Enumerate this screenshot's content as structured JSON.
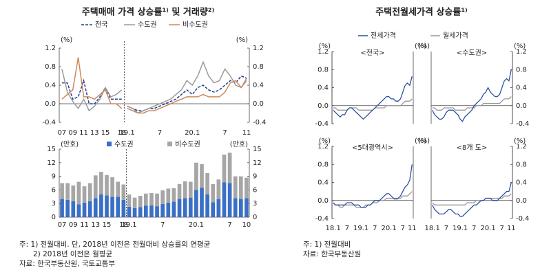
{
  "left_panel": {
    "title": "주택매매 가격 상승률¹⁾ 및 거래량²⁾",
    "notes": [
      "주: 1) 전월대비. 단, 2018년 이전은 전월대비 상승률의 연평균",
      "2) 2018년 이전은 월평균",
      "자료: 한국부동산원, 국토교통부"
    ]
  },
  "right_panel": {
    "title": "주택전월세가격 상승률¹⁾",
    "notes": [
      "주: 1) 전월대비",
      "자료: 한국부동산원"
    ]
  },
  "chart_data": [
    {
      "type": "line",
      "categories": [
        "07",
        null,
        "09",
        null,
        "11",
        null,
        "13",
        null,
        "15",
        null,
        null,
        "18",
        "19.1",
        null,
        null,
        null,
        null,
        null,
        "7",
        null,
        null,
        null,
        null,
        null,
        "20.1",
        null,
        null,
        null,
        null,
        null,
        "7",
        null,
        null,
        null,
        "11"
      ],
      "series": [
        {
          "name": "전국",
          "color": "#1f3f8f",
          "style": "dashed",
          "values": [
            0.45,
            0.45,
            0.1,
            0.15,
            0.5,
            0.0,
            0.0,
            0.15,
            0.35,
            0.1,
            0.1,
            0.1,
            -0.05,
            -0.1,
            -0.15,
            -0.15,
            -0.1,
            -0.1,
            -0.05,
            0.0,
            0.05,
            0.1,
            0.2,
            0.3,
            0.2,
            0.35,
            0.4,
            0.3,
            0.25,
            0.3,
            0.4,
            0.5,
            0.45,
            0.6,
            0.55
          ]
        },
        {
          "name": "수도권",
          "color": "#9a9a9a",
          "style": "solid",
          "values": [
            0.75,
            0.25,
            0.05,
            -0.1,
            0.1,
            -0.15,
            -0.05,
            0.1,
            0.35,
            0.15,
            0.2,
            0.3,
            -0.1,
            -0.15,
            -0.2,
            -0.15,
            -0.1,
            -0.05,
            0.0,
            0.05,
            0.1,
            0.2,
            0.3,
            0.5,
            0.4,
            0.6,
            0.9,
            0.6,
            0.45,
            0.5,
            0.75,
            0.6,
            0.4,
            0.35,
            0.55
          ]
        },
        {
          "name": "비수도권",
          "color": "#d0875a",
          "style": "solid",
          "values": [
            0.1,
            0.2,
            0.3,
            1.0,
            0.15,
            0.15,
            0.1,
            0.2,
            0.3,
            0.0,
            0.0,
            -0.1,
            -0.05,
            -0.1,
            -0.2,
            -0.2,
            -0.15,
            -0.15,
            -0.1,
            -0.05,
            0.0,
            0.05,
            0.1,
            0.15,
            0.15,
            0.15,
            0.2,
            0.15,
            0.15,
            0.15,
            0.25,
            0.45,
            0.5,
            0.35,
            0.5
          ]
        }
      ],
      "y_unit": "(%)",
      "ylim": [
        -0.4,
        1.2
      ],
      "yticks": [
        -0.4,
        {
          "value": 0,
          "label": "0.0"
        },
        0.4,
        0.8,
        1.2
      ],
      "y2_unit": "(%)",
      "y2lim": [
        -0.4,
        1.2
      ],
      "y2ticks": [
        -0.4,
        {
          "value": 0,
          "label": "0.0"
        },
        0.4,
        0.8,
        1.2
      ]
    },
    {
      "type": "stacked_bar",
      "categories": [
        "07",
        null,
        "09",
        null,
        "11",
        null,
        "13",
        null,
        "15",
        null,
        null,
        "18",
        "19.1",
        null,
        null,
        null,
        null,
        null,
        "7",
        null,
        null,
        null,
        null,
        null,
        "20.1",
        null,
        null,
        null,
        null,
        null,
        "7",
        null,
        null,
        "10"
      ],
      "series": [
        {
          "name": "수도권",
          "color": "#3a6fc4",
          "values": [
            4.0,
            3.8,
            3.5,
            2.8,
            3.2,
            3.5,
            4.2,
            5.0,
            4.8,
            4.5,
            4.5,
            3.8,
            2.3,
            2.0,
            2.2,
            2.5,
            2.6,
            2.4,
            2.9,
            3.2,
            3.4,
            4.0,
            4.2,
            4.3,
            6.0,
            6.5,
            5.0,
            3.3,
            4.0,
            7.7,
            7.5,
            4.2,
            4.0,
            4.2
          ]
        },
        {
          "name": "비수도권",
          "color": "#a6a6a6",
          "values": [
            3.5,
            3.7,
            3.5,
            5.0,
            3.6,
            4.0,
            5.0,
            5.0,
            4.5,
            4.3,
            3.3,
            3.4,
            2.7,
            2.3,
            2.5,
            2.7,
            2.7,
            2.8,
            3.0,
            3.1,
            3.0,
            3.3,
            3.7,
            3.5,
            6.0,
            5.2,
            4.7,
            4.0,
            4.3,
            6.1,
            6.7,
            4.8,
            5.0,
            4.5
          ]
        }
      ],
      "y_unit": "(만호)",
      "ylim": [
        0,
        15
      ],
      "yticks": [
        0,
        3,
        6,
        9,
        12,
        15
      ],
      "y2_unit": "(만호)",
      "y2lim": [
        0,
        15
      ],
      "y2ticks": [
        0,
        3,
        6,
        9,
        12,
        15
      ]
    },
    {
      "type": "small_multiples",
      "categories": [
        "18.1",
        null,
        null,
        null,
        null,
        null,
        "7",
        null,
        null,
        null,
        null,
        null,
        "19.1",
        null,
        null,
        null,
        null,
        null,
        "7",
        null,
        null,
        null,
        null,
        null,
        "20.1",
        null,
        null,
        null,
        null,
        null,
        "7",
        null,
        null,
        null,
        "11"
      ],
      "series": [
        {
          "name": "전세가격",
          "color": "#2d4fa0"
        },
        {
          "name": "월세가격",
          "color": "#999999"
        }
      ],
      "y_unit": "(%)",
      "ylim": [
        -0.4,
        1.2
      ],
      "yticks": [
        -0.4,
        {
          "value": 0,
          "label": "0.0"
        },
        0.4,
        0.8,
        1.2
      ],
      "panels": [
        {
          "title": "<전국>",
          "series": [
            {
              "values": [
                -0.1,
                -0.15,
                -0.2,
                -0.25,
                -0.2,
                -0.2,
                -0.1,
                -0.05,
                -0.05,
                -0.1,
                -0.15,
                -0.2,
                -0.25,
                -0.3,
                -0.25,
                -0.2,
                -0.15,
                -0.1,
                -0.05,
                0.0,
                0.05,
                0.1,
                0.15,
                0.2,
                0.2,
                0.15,
                0.15,
                0.1,
                0.1,
                0.15,
                0.3,
                0.45,
                0.5,
                0.45,
                0.65
              ]
            },
            {
              "values": [
                -0.05,
                -0.05,
                -0.1,
                -0.1,
                -0.1,
                -0.1,
                -0.1,
                -0.05,
                -0.05,
                -0.05,
                -0.05,
                -0.1,
                -0.1,
                -0.1,
                -0.1,
                -0.1,
                -0.1,
                -0.1,
                -0.05,
                -0.05,
                -0.05,
                -0.05,
                -0.05,
                0.0,
                0.0,
                0.0,
                0.0,
                0.0,
                0.0,
                0.0,
                0.05,
                0.1,
                0.1,
                0.1,
                0.15
              ]
            }
          ]
        },
        {
          "title": "<수도권>",
          "series": [
            {
              "values": [
                -0.1,
                -0.2,
                -0.25,
                -0.3,
                -0.3,
                -0.25,
                -0.15,
                -0.1,
                -0.1,
                -0.1,
                -0.15,
                -0.2,
                -0.3,
                -0.35,
                -0.25,
                -0.2,
                -0.15,
                -0.1,
                0.0,
                0.05,
                0.1,
                0.15,
                0.25,
                0.3,
                0.4,
                0.3,
                0.25,
                0.2,
                0.2,
                0.25,
                0.4,
                0.55,
                0.6,
                0.55,
                0.8
              ]
            },
            {
              "values": [
                -0.05,
                -0.05,
                -0.1,
                -0.1,
                -0.1,
                -0.05,
                -0.05,
                -0.05,
                -0.05,
                -0.05,
                -0.1,
                -0.1,
                -0.1,
                -0.1,
                -0.1,
                -0.05,
                -0.05,
                -0.05,
                -0.05,
                0.0,
                0.0,
                0.0,
                0.05,
                0.05,
                0.05,
                0.05,
                0.05,
                0.05,
                0.05,
                0.05,
                0.1,
                0.15,
                0.15,
                0.15,
                0.2
              ]
            }
          ]
        },
        {
          "title": "<5대광역시>",
          "series": [
            {
              "values": [
                -0.05,
                -0.1,
                -0.1,
                -0.1,
                -0.1,
                -0.1,
                -0.05,
                -0.05,
                -0.05,
                -0.1,
                -0.1,
                -0.1,
                -0.15,
                -0.15,
                -0.15,
                -0.1,
                -0.1,
                -0.05,
                0.0,
                0.0,
                0.0,
                0.05,
                0.1,
                0.15,
                0.15,
                0.1,
                0.05,
                0.05,
                0.05,
                0.1,
                0.2,
                0.3,
                0.35,
                0.45,
                0.8
              ]
            },
            {
              "values": [
                -0.05,
                -0.1,
                -0.1,
                -0.15,
                -0.15,
                -0.1,
                -0.1,
                -0.1,
                -0.1,
                -0.1,
                -0.15,
                -0.15,
                -0.15,
                -0.15,
                -0.1,
                -0.1,
                -0.1,
                -0.05,
                -0.05,
                -0.05,
                0.0,
                0.0,
                0.0,
                0.05,
                0.05,
                0.05,
                0.05,
                0.0,
                0.05,
                0.05,
                0.1,
                0.1,
                0.1,
                0.15,
                0.2
              ]
            }
          ]
        },
        {
          "title": "<8개 도>",
          "series": [
            {
              "values": [
                -0.1,
                -0.2,
                -0.25,
                -0.3,
                -0.3,
                -0.3,
                -0.25,
                -0.2,
                -0.2,
                -0.25,
                -0.3,
                -0.3,
                -0.35,
                -0.35,
                -0.3,
                -0.25,
                -0.2,
                -0.15,
                -0.1,
                -0.1,
                -0.05,
                0.0,
                0.0,
                0.05,
                0.05,
                0.05,
                0.0,
                0.0,
                0.0,
                0.05,
                0.1,
                0.15,
                0.2,
                0.2,
                0.4
              ]
            },
            {
              "values": [
                -0.05,
                -0.1,
                -0.1,
                -0.1,
                -0.1,
                -0.1,
                -0.1,
                -0.1,
                -0.1,
                -0.1,
                -0.1,
                -0.1,
                -0.1,
                -0.1,
                -0.1,
                -0.05,
                -0.05,
                -0.05,
                -0.05,
                0.0,
                0.0,
                0.0,
                0.0,
                0.05,
                0.05,
                0.05,
                0.05,
                0.05,
                0.05,
                0.05,
                0.05,
                0.1,
                0.1,
                0.1,
                0.15
              ]
            }
          ]
        }
      ]
    }
  ]
}
